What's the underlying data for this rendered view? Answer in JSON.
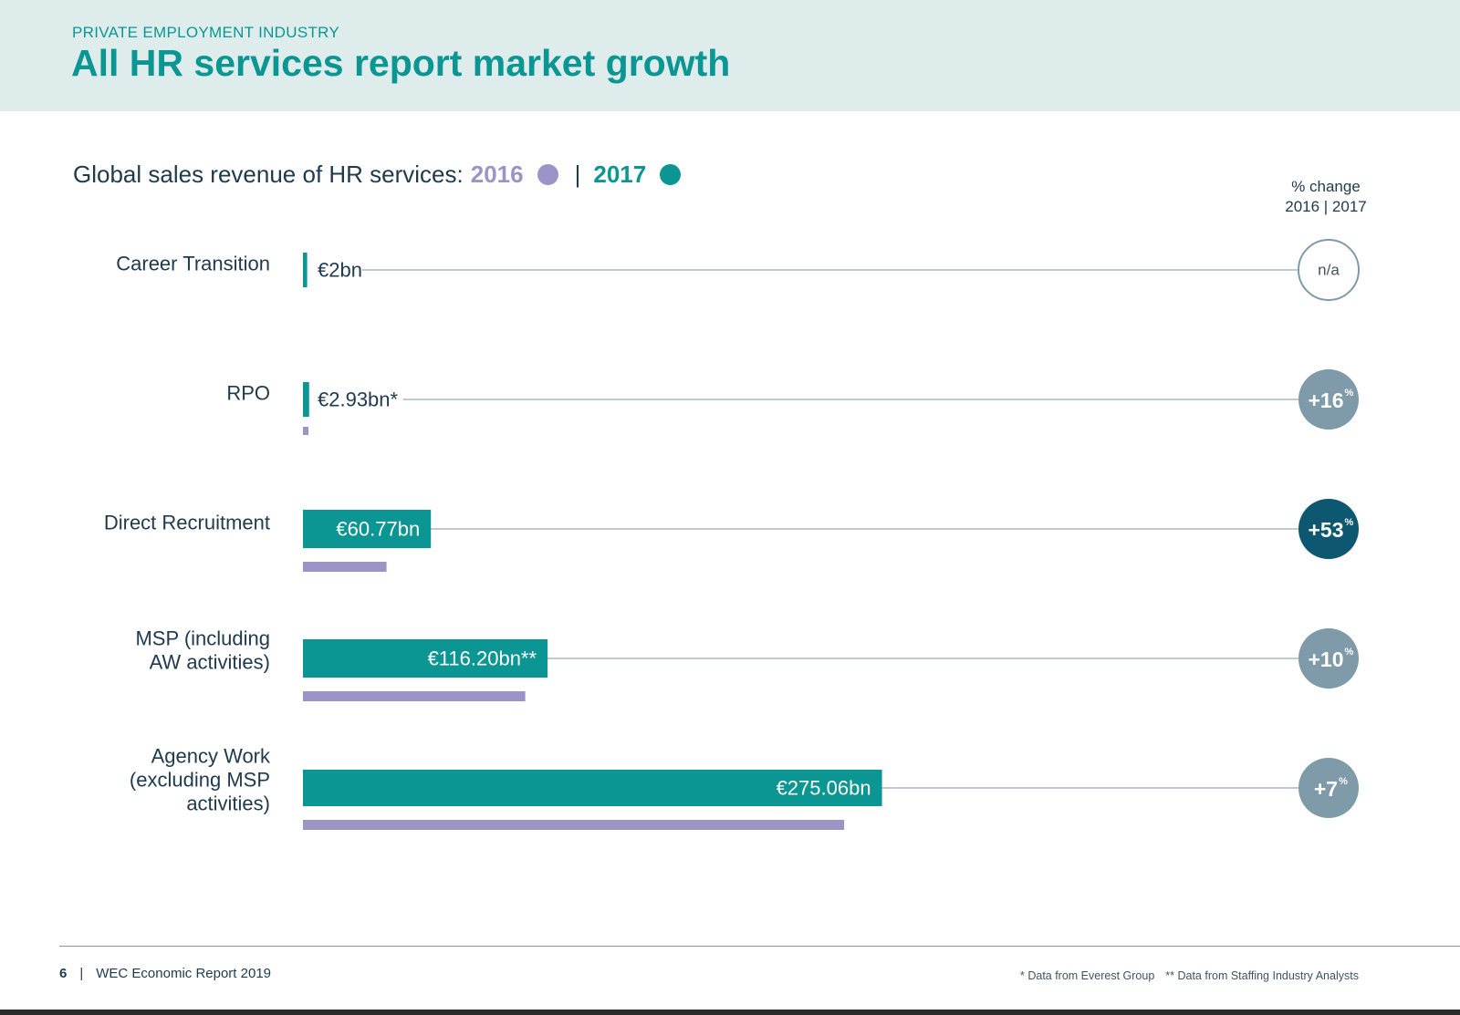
{
  "header": {
    "kicker": "PRIVATE EMPLOYMENT INDUSTRY",
    "title": "All HR services report market growth"
  },
  "chart_title": {
    "prefix": "Global sales revenue of HR services:",
    "year_2016": "2016",
    "separator": "|",
    "year_2017": "2017"
  },
  "pct_change_header": {
    "line1": "% change",
    "line2": "2016 | 2017"
  },
  "colors": {
    "series_2016": "#9b94c6",
    "series_2017": "#0b9694",
    "badge_default": "#7f9aa9",
    "badge_highlight": "#0d5870",
    "label_text": "#1f3a4d"
  },
  "chart_data": {
    "type": "bar",
    "orientation": "horizontal",
    "unit": "€bn",
    "categories": [
      [
        "Career Transition"
      ],
      [
        "RPO"
      ],
      [
        "Direct Recruitment"
      ],
      [
        "MSP (including",
        "AW activities)"
      ],
      [
        "Agency Work",
        "(excluding MSP",
        "activities)"
      ]
    ],
    "series": [
      {
        "name": "2017",
        "values": [
          2,
          2.93,
          60.77,
          116.2,
          275.06
        ]
      },
      {
        "name": "2016",
        "values": [
          null,
          2.53,
          39.7,
          105.6,
          257.1
        ]
      }
    ],
    "value_labels_2017": [
      "€2bn",
      "€2.93bn*",
      "€60.77bn",
      "€116.20bn**",
      "€275.06bn"
    ],
    "pct_change": [
      {
        "value": "n/a",
        "suffix": "",
        "style": "outline"
      },
      {
        "value": "+16",
        "suffix": "%",
        "style": "filled"
      },
      {
        "value": "+53",
        "suffix": "%",
        "style": "highlight"
      },
      {
        "value": "+10",
        "suffix": "%",
        "style": "filled"
      },
      {
        "value": "+7",
        "suffix": "%",
        "style": "filled"
      }
    ],
    "legend": {
      "placement": "title-line"
    },
    "grid": false
  },
  "footer": {
    "page_number": "6",
    "separator": "|",
    "report_name": "WEC Economic Report 2019",
    "note_1": "* Data from Everest Group",
    "note_2": "** Data from Staffing Industry Analysts"
  }
}
